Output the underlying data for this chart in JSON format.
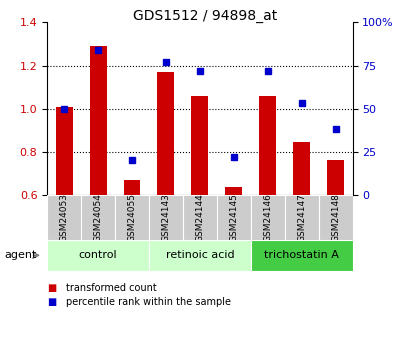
{
  "title": "GDS1512 / 94898_at",
  "samples": [
    "GSM24053",
    "GSM24054",
    "GSM24055",
    "GSM24143",
    "GSM24144",
    "GSM24145",
    "GSM24146",
    "GSM24147",
    "GSM24148"
  ],
  "transformed_count": [
    1.01,
    1.29,
    0.67,
    1.17,
    1.06,
    0.635,
    1.06,
    0.845,
    0.76
  ],
  "percentile_rank": [
    50,
    84,
    20,
    77,
    72,
    22,
    72,
    53,
    38
  ],
  "ylim_left": [
    0.6,
    1.4
  ],
  "ylim_right": [
    0,
    100
  ],
  "yticks_left": [
    0.6,
    0.8,
    1.0,
    1.2,
    1.4
  ],
  "yticks_right": [
    0,
    25,
    50,
    75,
    100
  ],
  "ytick_labels_right": [
    "0",
    "25",
    "50",
    "75",
    "100%"
  ],
  "hlines": [
    0.8,
    1.0,
    1.2
  ],
  "bar_color": "#cc0000",
  "dot_color": "#0000cc",
  "groups": [
    {
      "label": "control",
      "indices": [
        0,
        1,
        2
      ],
      "color": "#ccffcc"
    },
    {
      "label": "retinoic acid",
      "indices": [
        3,
        4,
        5
      ],
      "color": "#ccffcc"
    },
    {
      "label": "trichostatin A",
      "indices": [
        6,
        7,
        8
      ],
      "color": "#44cc44"
    }
  ],
  "agent_label": "agent",
  "legend_bar_label": "transformed count",
  "legend_dot_label": "percentile rank within the sample",
  "tick_label_color_left": "#cc0000",
  "tick_label_color_right": "#0000cc",
  "baseline": 0.6,
  "sample_box_color": "#cccccc",
  "sample_box_edge": "#aaaaaa"
}
